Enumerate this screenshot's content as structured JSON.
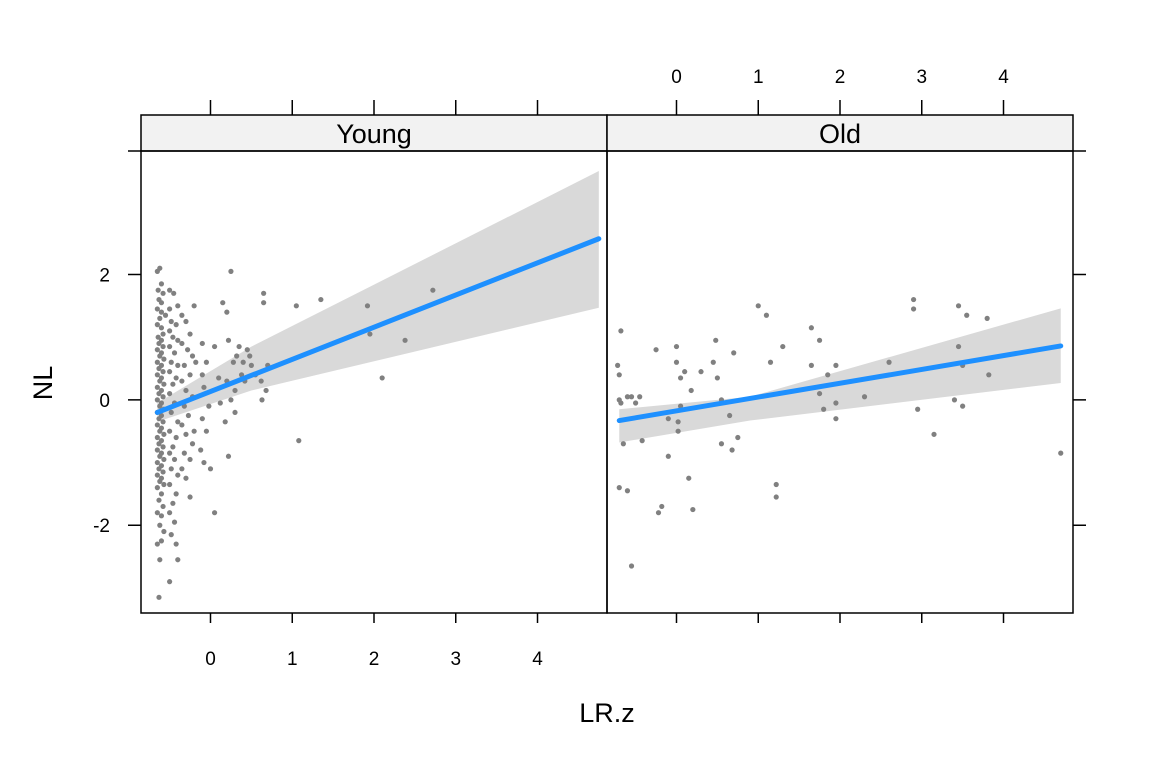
{
  "chart_data": {
    "type": "scatter",
    "xlabel": "LR.z",
    "ylabel": "NL",
    "xlim": [
      -0.85,
      4.85
    ],
    "ylim": [
      -3.4,
      3.97
    ],
    "x_ticks": [
      0,
      1,
      2,
      3,
      4
    ],
    "y_ticks": [
      -2,
      0,
      2
    ],
    "grid": false,
    "colors": {
      "points": "#808080",
      "fit_line": "#1e90ff",
      "ci_band": "#d9d9d9",
      "strip_bg": "#f2f2f2"
    },
    "panels": [
      {
        "strip": "Young",
        "fit": {
          "x": [
            -0.65,
            4.75
          ],
          "y": [
            -0.2,
            2.57
          ]
        },
        "ci": {
          "x": [
            -0.65,
            0.5,
            4.75
          ],
          "upper": [
            -0.05,
            0.85,
            3.65
          ],
          "lower": [
            -0.35,
            0.15,
            1.47
          ]
        },
        "points": [
          [
            -0.65,
            2.05
          ],
          [
            -0.62,
            2.1
          ],
          [
            -0.6,
            1.85
          ],
          [
            -0.64,
            1.75
          ],
          [
            -0.58,
            1.7
          ],
          [
            -0.63,
            1.6
          ],
          [
            -0.6,
            1.55
          ],
          [
            -0.65,
            1.45
          ],
          [
            -0.6,
            1.4
          ],
          [
            -0.55,
            1.35
          ],
          [
            -0.62,
            1.3
          ],
          [
            -0.65,
            1.2
          ],
          [
            -0.6,
            1.15
          ],
          [
            -0.58,
            1.05
          ],
          [
            -0.64,
            1.0
          ],
          [
            -0.6,
            0.95
          ],
          [
            -0.63,
            0.9
          ],
          [
            -0.58,
            0.85
          ],
          [
            -0.65,
            0.8
          ],
          [
            -0.6,
            0.75
          ],
          [
            -0.62,
            0.7
          ],
          [
            -0.57,
            0.65
          ],
          [
            -0.65,
            0.6
          ],
          [
            -0.6,
            0.55
          ],
          [
            -0.63,
            0.5
          ],
          [
            -0.58,
            0.45
          ],
          [
            -0.65,
            0.4
          ],
          [
            -0.6,
            0.35
          ],
          [
            -0.62,
            0.3
          ],
          [
            -0.57,
            0.25
          ],
          [
            -0.65,
            0.2
          ],
          [
            -0.6,
            0.15
          ],
          [
            -0.63,
            0.1
          ],
          [
            -0.58,
            0.05
          ],
          [
            -0.65,
            0.0
          ],
          [
            -0.6,
            -0.05
          ],
          [
            -0.62,
            -0.1
          ],
          [
            -0.57,
            -0.15
          ],
          [
            -0.65,
            -0.2
          ],
          [
            -0.6,
            -0.25
          ],
          [
            -0.63,
            -0.3
          ],
          [
            -0.58,
            -0.35
          ],
          [
            -0.65,
            -0.4
          ],
          [
            -0.6,
            -0.45
          ],
          [
            -0.62,
            -0.5
          ],
          [
            -0.57,
            -0.55
          ],
          [
            -0.65,
            -0.6
          ],
          [
            -0.6,
            -0.65
          ],
          [
            -0.63,
            -0.7
          ],
          [
            -0.58,
            -0.75
          ],
          [
            -0.65,
            -0.8
          ],
          [
            -0.6,
            -0.85
          ],
          [
            -0.62,
            -0.9
          ],
          [
            -0.57,
            -0.95
          ],
          [
            -0.65,
            -1.0
          ],
          [
            -0.6,
            -1.05
          ],
          [
            -0.63,
            -1.1
          ],
          [
            -0.58,
            -1.15
          ],
          [
            -0.65,
            -1.2
          ],
          [
            -0.6,
            -1.25
          ],
          [
            -0.62,
            -1.3
          ],
          [
            -0.57,
            -1.35
          ],
          [
            -0.65,
            -1.4
          ],
          [
            -0.6,
            -1.5
          ],
          [
            -0.63,
            -1.6
          ],
          [
            -0.58,
            -1.7
          ],
          [
            -0.65,
            -1.8
          ],
          [
            -0.6,
            -1.85
          ],
          [
            -0.62,
            -2.0
          ],
          [
            -0.57,
            -2.1
          ],
          [
            -0.65,
            -2.3
          ],
          [
            -0.6,
            -2.25
          ],
          [
            -0.62,
            -2.55
          ],
          [
            -0.63,
            -3.15
          ],
          [
            -0.5,
            1.75
          ],
          [
            -0.45,
            1.7
          ],
          [
            -0.5,
            1.45
          ],
          [
            -0.4,
            1.5
          ],
          [
            -0.48,
            1.25
          ],
          [
            -0.42,
            1.2
          ],
          [
            -0.5,
            1.1
          ],
          [
            -0.46,
            1.0
          ],
          [
            -0.4,
            0.95
          ],
          [
            -0.5,
            0.85
          ],
          [
            -0.44,
            0.75
          ],
          [
            -0.48,
            0.6
          ],
          [
            -0.4,
            0.55
          ],
          [
            -0.5,
            0.45
          ],
          [
            -0.42,
            0.35
          ],
          [
            -0.46,
            0.25
          ],
          [
            -0.5,
            0.1
          ],
          [
            -0.44,
            -0.05
          ],
          [
            -0.48,
            -0.2
          ],
          [
            -0.4,
            -0.35
          ],
          [
            -0.5,
            -0.5
          ],
          [
            -0.42,
            -0.6
          ],
          [
            -0.46,
            -0.75
          ],
          [
            -0.5,
            -0.85
          ],
          [
            -0.44,
            -0.95
          ],
          [
            -0.48,
            -1.1
          ],
          [
            -0.4,
            -1.2
          ],
          [
            -0.5,
            -1.35
          ],
          [
            -0.42,
            -1.5
          ],
          [
            -0.46,
            -1.65
          ],
          [
            -0.5,
            -1.8
          ],
          [
            -0.44,
            -1.95
          ],
          [
            -0.48,
            -2.15
          ],
          [
            -0.42,
            -2.3
          ],
          [
            -0.4,
            -2.55
          ],
          [
            -0.5,
            -2.9
          ],
          [
            -0.35,
            1.35
          ],
          [
            -0.3,
            1.25
          ],
          [
            -0.25,
            1.05
          ],
          [
            -0.35,
            0.9
          ],
          [
            -0.28,
            0.8
          ],
          [
            -0.22,
            0.7
          ],
          [
            -0.32,
            0.55
          ],
          [
            -0.25,
            0.4
          ],
          [
            -0.35,
            0.3
          ],
          [
            -0.3,
            0.15
          ],
          [
            -0.22,
            0.05
          ],
          [
            -0.32,
            -0.1
          ],
          [
            -0.27,
            -0.25
          ],
          [
            -0.35,
            -0.4
          ],
          [
            -0.3,
            -0.55
          ],
          [
            -0.22,
            -0.7
          ],
          [
            -0.32,
            -0.85
          ],
          [
            -0.25,
            -0.95
          ],
          [
            -0.35,
            -1.1
          ],
          [
            -0.3,
            -1.25
          ],
          [
            -0.25,
            -1.55
          ],
          [
            -0.2,
            1.5
          ],
          [
            -0.18,
            0.6
          ],
          [
            -0.2,
            -0.5
          ],
          [
            -0.1,
            0.4
          ],
          [
            -0.05,
            0.6
          ],
          [
            -0.08,
            0.2
          ],
          [
            -0.02,
            -0.1
          ],
          [
            -0.1,
            -0.3
          ],
          [
            -0.05,
            -0.5
          ],
          [
            -0.12,
            -0.8
          ],
          [
            -0.08,
            -1.0
          ],
          [
            -0.1,
            0.9
          ],
          [
            0.0,
            -1.1
          ],
          [
            0.05,
            0.85
          ],
          [
            0.1,
            0.35
          ],
          [
            0.12,
            -0.05
          ],
          [
            0.05,
            -1.8
          ],
          [
            0.15,
            1.55
          ],
          [
            0.2,
            1.4
          ],
          [
            0.25,
            2.05
          ],
          [
            0.22,
            0.95
          ],
          [
            0.28,
            0.6
          ],
          [
            0.2,
            0.3
          ],
          [
            0.25,
            0.0
          ],
          [
            0.18,
            -0.35
          ],
          [
            0.22,
            -0.9
          ],
          [
            0.3,
            0.15
          ],
          [
            0.32,
            0.7
          ],
          [
            0.35,
            0.85
          ],
          [
            0.3,
            -0.2
          ],
          [
            0.38,
            0.4
          ],
          [
            0.4,
            0.6
          ],
          [
            0.4,
            0.35
          ],
          [
            0.45,
            0.8
          ],
          [
            0.42,
            0.3
          ],
          [
            0.48,
            0.7
          ],
          [
            0.5,
            0.55
          ],
          [
            0.55,
            0.4
          ],
          [
            0.62,
            0.3
          ],
          [
            0.65,
            1.7
          ],
          [
            0.65,
            1.55
          ],
          [
            0.68,
            0.15
          ],
          [
            0.7,
            0.55
          ],
          [
            0.63,
            0.0
          ],
          [
            1.05,
            1.5
          ],
          [
            1.08,
            -0.65
          ],
          [
            1.35,
            1.6
          ],
          [
            1.92,
            1.5
          ],
          [
            1.95,
            1.05
          ],
          [
            2.1,
            0.35
          ],
          [
            2.38,
            0.95
          ],
          [
            2.72,
            1.75
          ]
        ]
      },
      {
        "strip": "Old",
        "fit": {
          "x": [
            -0.7,
            4.7
          ],
          "y": [
            -0.33,
            0.86
          ]
        },
        "ci": {
          "x": [
            -0.7,
            0.9,
            4.7
          ],
          "upper": [
            -0.15,
            0.05,
            1.46
          ],
          "lower": [
            -0.68,
            -0.33,
            0.27
          ]
        },
        "points": [
          [
            -0.72,
            0.55
          ],
          [
            -0.7,
            0.4
          ],
          [
            -0.68,
            1.1
          ],
          [
            -0.7,
            0.0
          ],
          [
            -0.68,
            -0.05
          ],
          [
            -0.65,
            -0.7
          ],
          [
            -0.7,
            -1.4
          ],
          [
            -0.6,
            -1.45
          ],
          [
            -0.55,
            -2.65
          ],
          [
            -0.6,
            0.05
          ],
          [
            -0.55,
            0.05
          ],
          [
            -0.5,
            -0.05
          ],
          [
            -0.45,
            0.05
          ],
          [
            -0.42,
            -0.65
          ],
          [
            -0.25,
            0.8
          ],
          [
            -0.22,
            -1.8
          ],
          [
            -0.18,
            -1.7
          ],
          [
            -0.1,
            -0.9
          ],
          [
            -0.1,
            -0.3
          ],
          [
            0.0,
            0.85
          ],
          [
            0.0,
            0.6
          ],
          [
            0.02,
            -0.35
          ],
          [
            0.05,
            0.35
          ],
          [
            0.05,
            -0.1
          ],
          [
            0.02,
            -0.5
          ],
          [
            0.1,
            0.45
          ],
          [
            0.15,
            -1.25
          ],
          [
            0.18,
            0.15
          ],
          [
            0.2,
            -1.75
          ],
          [
            0.3,
            0.45
          ],
          [
            0.45,
            0.6
          ],
          [
            0.48,
            0.95
          ],
          [
            0.5,
            0.35
          ],
          [
            0.55,
            -0.7
          ],
          [
            0.55,
            0.0
          ],
          [
            0.65,
            -0.25
          ],
          [
            0.68,
            -0.8
          ],
          [
            0.7,
            0.75
          ],
          [
            0.75,
            -0.6
          ],
          [
            1.0,
            1.5
          ],
          [
            1.1,
            1.35
          ],
          [
            1.15,
            0.6
          ],
          [
            1.22,
            -1.35
          ],
          [
            1.22,
            -1.55
          ],
          [
            1.3,
            0.85
          ],
          [
            1.65,
            1.15
          ],
          [
            1.65,
            0.55
          ],
          [
            1.75,
            0.95
          ],
          [
            1.75,
            0.1
          ],
          [
            1.8,
            -0.15
          ],
          [
            1.85,
            0.4
          ],
          [
            1.95,
            0.55
          ],
          [
            1.95,
            -0.05
          ],
          [
            1.95,
            -0.3
          ],
          [
            2.3,
            0.05
          ],
          [
            2.6,
            0.6
          ],
          [
            2.9,
            1.6
          ],
          [
            2.9,
            1.45
          ],
          [
            2.95,
            -0.15
          ],
          [
            3.15,
            -0.55
          ],
          [
            3.4,
            0.0
          ],
          [
            3.45,
            1.5
          ],
          [
            3.45,
            0.85
          ],
          [
            3.5,
            0.55
          ],
          [
            3.5,
            -0.1
          ],
          [
            3.55,
            1.35
          ],
          [
            3.8,
            1.3
          ],
          [
            3.82,
            0.4
          ],
          [
            4.7,
            -0.85
          ]
        ]
      }
    ]
  }
}
